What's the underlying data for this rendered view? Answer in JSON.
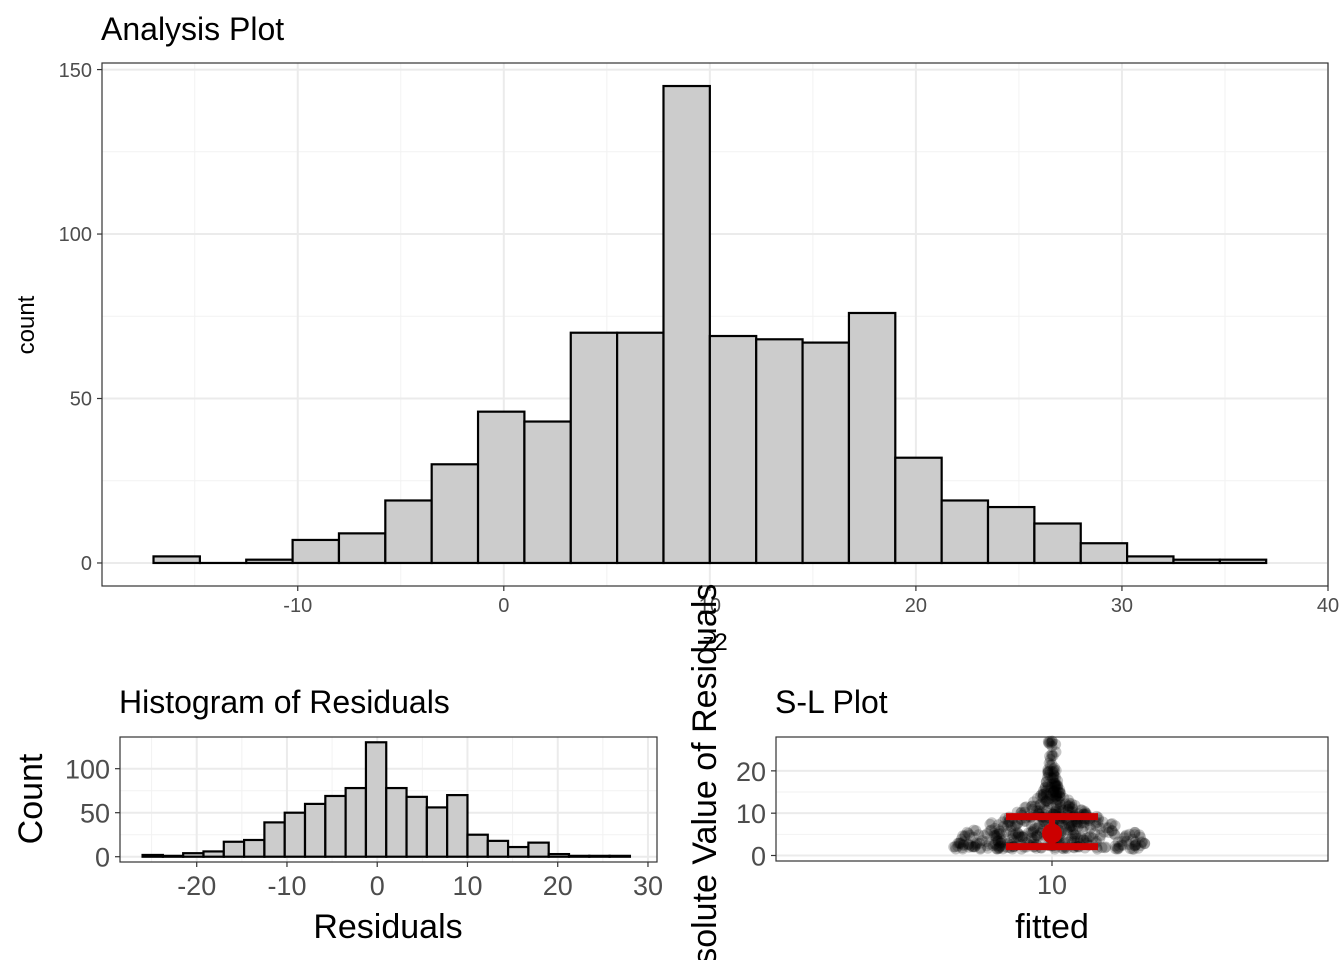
{
  "chart_data": [
    {
      "id": "analysis",
      "type": "bar",
      "title": "Analysis Plot",
      "xlabel": "z2",
      "ylabel": "count",
      "xlim": [
        -19.5,
        40
      ],
      "ylim": [
        -7,
        152
      ],
      "x_ticks": [
        -10,
        0,
        10,
        20,
        30,
        40
      ],
      "x_tick_labels": [
        "-10",
        "0",
        "10",
        "20",
        "30",
        "40"
      ],
      "y_ticks": [
        0,
        50,
        100,
        150
      ],
      "y_tick_labels": [
        "0",
        "50",
        "100",
        "150"
      ],
      "bin_start": -17.0,
      "bin_width": 2.25,
      "counts": [
        2,
        0,
        1,
        7,
        9,
        19,
        30,
        46,
        43,
        70,
        70,
        145,
        69,
        68,
        67,
        76,
        32,
        19,
        17,
        12,
        6,
        2,
        1,
        1
      ],
      "bar_fill": "#cccccc",
      "bar_outline": "#000000",
      "grid": true
    },
    {
      "id": "residual-hist",
      "type": "bar",
      "title": "Histogram of Residuals",
      "xlabel": "Residuals",
      "ylabel": "Count",
      "xlim": [
        -28.5,
        31
      ],
      "ylim": [
        -6,
        136
      ],
      "x_ticks": [
        -20,
        -10,
        0,
        10,
        20,
        30
      ],
      "x_tick_labels": [
        "-20",
        "-10",
        "0",
        "10",
        "20",
        "30"
      ],
      "y_ticks": [
        0,
        50,
        100
      ],
      "y_tick_labels": [
        "0",
        "50",
        "100"
      ],
      "bin_start": -26.0,
      "bin_width": 2.25,
      "counts": [
        2,
        1,
        4,
        6,
        17,
        19,
        39,
        50,
        60,
        69,
        78,
        130,
        78,
        68,
        56,
        70,
        25,
        18,
        11,
        16,
        3,
        1,
        1,
        1
      ],
      "bar_fill": "#cccccc",
      "bar_outline": "#000000",
      "grid": true
    },
    {
      "id": "sl-plot",
      "type": "scatter",
      "title": "S-L Plot",
      "xlabel": "fitted",
      "ylabel": "Absolute Value of Residuals",
      "xlim": [
        9.4,
        10.6
      ],
      "ylim": [
        -1.3,
        28
      ],
      "x_ticks": [
        10
      ],
      "x_tick_labels": [
        "10"
      ],
      "y_ticks": [
        0,
        10,
        20
      ],
      "y_tick_labels": [
        "0",
        "10",
        "20"
      ],
      "points_x": 10,
      "max_abs_residual": 27,
      "point_color": "#000000",
      "summary": {
        "mean": 5.2,
        "lower": 2.1,
        "upper": 9.2,
        "color": "#cc0000"
      },
      "grid": true
    }
  ]
}
